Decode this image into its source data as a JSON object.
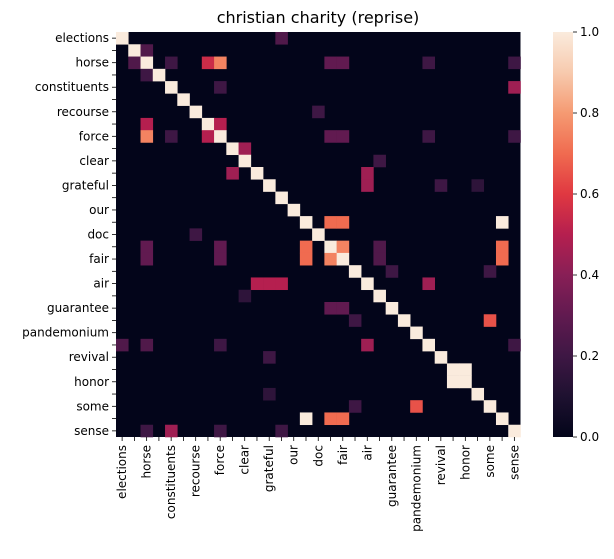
{
  "chart_data": {
    "type": "heatmap",
    "title": "christian charity (reprise)",
    "labels": [
      "elections",
      "",
      "horse",
      "",
      "constituents",
      "",
      "recourse",
      "",
      "force",
      "",
      "clear",
      "",
      "grateful",
      "",
      "our",
      "",
      "doc",
      "",
      "fair",
      "",
      "air",
      "",
      "guarantee",
      "",
      "pandemonium",
      "",
      "revival",
      "",
      "honor",
      "",
      "some",
      "",
      "sense"
    ],
    "colorbar": {
      "min": 0.0,
      "max": 1.0,
      "ticks": [
        "0.0",
        "0.2",
        "0.4",
        "0.6",
        "0.8",
        "1.0"
      ]
    },
    "colormap": "rocket",
    "cells": [
      [
        0,
        0,
        1.0
      ],
      [
        0,
        13,
        0.25
      ],
      [
        1,
        1,
        1.0
      ],
      [
        1,
        2,
        0.25
      ],
      [
        2,
        1,
        0.25
      ],
      [
        2,
        2,
        1.0
      ],
      [
        2,
        4,
        0.2
      ],
      [
        2,
        7,
        0.55
      ],
      [
        2,
        8,
        0.75
      ],
      [
        2,
        17,
        0.3
      ],
      [
        2,
        18,
        0.3
      ],
      [
        2,
        25,
        0.2
      ],
      [
        2,
        32,
        0.2
      ],
      [
        3,
        2,
        0.2
      ],
      [
        3,
        3,
        1.0
      ],
      [
        4,
        4,
        1.0
      ],
      [
        4,
        8,
        0.2
      ],
      [
        4,
        32,
        0.45
      ],
      [
        5,
        5,
        1.0
      ],
      [
        6,
        6,
        1.0
      ],
      [
        6,
        16,
        0.2
      ],
      [
        7,
        2,
        0.5
      ],
      [
        7,
        7,
        1.0
      ],
      [
        7,
        8,
        0.5
      ],
      [
        8,
        2,
        0.75
      ],
      [
        8,
        4,
        0.2
      ],
      [
        8,
        7,
        0.5
      ],
      [
        8,
        8,
        1.0
      ],
      [
        8,
        17,
        0.3
      ],
      [
        8,
        18,
        0.3
      ],
      [
        8,
        25,
        0.2
      ],
      [
        8,
        32,
        0.2
      ],
      [
        9,
        9,
        1.0
      ],
      [
        9,
        10,
        0.45
      ],
      [
        10,
        10,
        1.0
      ],
      [
        10,
        21,
        0.2
      ],
      [
        11,
        9,
        0.45
      ],
      [
        11,
        11,
        1.0
      ],
      [
        11,
        20,
        0.45
      ],
      [
        12,
        12,
        1.0
      ],
      [
        12,
        20,
        0.45
      ],
      [
        12,
        26,
        0.2
      ],
      [
        12,
        29,
        0.15
      ],
      [
        13,
        13,
        1.0
      ],
      [
        14,
        14,
        1.0
      ],
      [
        15,
        15,
        1.0
      ],
      [
        15,
        17,
        0.7
      ],
      [
        15,
        18,
        0.7
      ],
      [
        15,
        31,
        1.0
      ],
      [
        16,
        6,
        0.2
      ],
      [
        16,
        16,
        1.0
      ],
      [
        17,
        2,
        0.3
      ],
      [
        17,
        8,
        0.3
      ],
      [
        17,
        15,
        0.7
      ],
      [
        17,
        17,
        1.0
      ],
      [
        17,
        18,
        0.75
      ],
      [
        17,
        21,
        0.25
      ],
      [
        17,
        31,
        0.7
      ],
      [
        18,
        2,
        0.3
      ],
      [
        18,
        8,
        0.3
      ],
      [
        18,
        15,
        0.7
      ],
      [
        18,
        17,
        0.75
      ],
      [
        18,
        18,
        1.0
      ],
      [
        18,
        21,
        0.25
      ],
      [
        18,
        31,
        0.7
      ],
      [
        19,
        19,
        1.0
      ],
      [
        19,
        22,
        0.2
      ],
      [
        19,
        30,
        0.2
      ],
      [
        20,
        11,
        0.5
      ],
      [
        20,
        12,
        0.5
      ],
      [
        20,
        13,
        0.5
      ],
      [
        20,
        20,
        1.0
      ],
      [
        20,
        25,
        0.45
      ],
      [
        21,
        10,
        0.15
      ],
      [
        21,
        21,
        1.0
      ],
      [
        22,
        17,
        0.3
      ],
      [
        22,
        18,
        0.3
      ],
      [
        22,
        22,
        1.0
      ],
      [
        23,
        19,
        0.2
      ],
      [
        23,
        23,
        1.0
      ],
      [
        23,
        30,
        0.65
      ],
      [
        24,
        24,
        1.0
      ],
      [
        25,
        0,
        0.25
      ],
      [
        25,
        2,
        0.25
      ],
      [
        25,
        8,
        0.2
      ],
      [
        25,
        20,
        0.45
      ],
      [
        25,
        25,
        1.0
      ],
      [
        25,
        32,
        0.2
      ],
      [
        26,
        12,
        0.2
      ],
      [
        26,
        26,
        1.0
      ],
      [
        27,
        27,
        1.0
      ],
      [
        27,
        28,
        1.0
      ],
      [
        28,
        27,
        1.0
      ],
      [
        28,
        28,
        1.0
      ],
      [
        29,
        12,
        0.15
      ],
      [
        29,
        29,
        1.0
      ],
      [
        30,
        19,
        0.2
      ],
      [
        30,
        24,
        0.65
      ],
      [
        30,
        30,
        1.0
      ],
      [
        31,
        15,
        1.0
      ],
      [
        31,
        17,
        0.7
      ],
      [
        31,
        18,
        0.7
      ],
      [
        31,
        31,
        1.0
      ],
      [
        32,
        2,
        0.2
      ],
      [
        32,
        4,
        0.45
      ],
      [
        32,
        8,
        0.2
      ],
      [
        32,
        13,
        0.2
      ],
      [
        32,
        32,
        1.0
      ]
    ]
  }
}
